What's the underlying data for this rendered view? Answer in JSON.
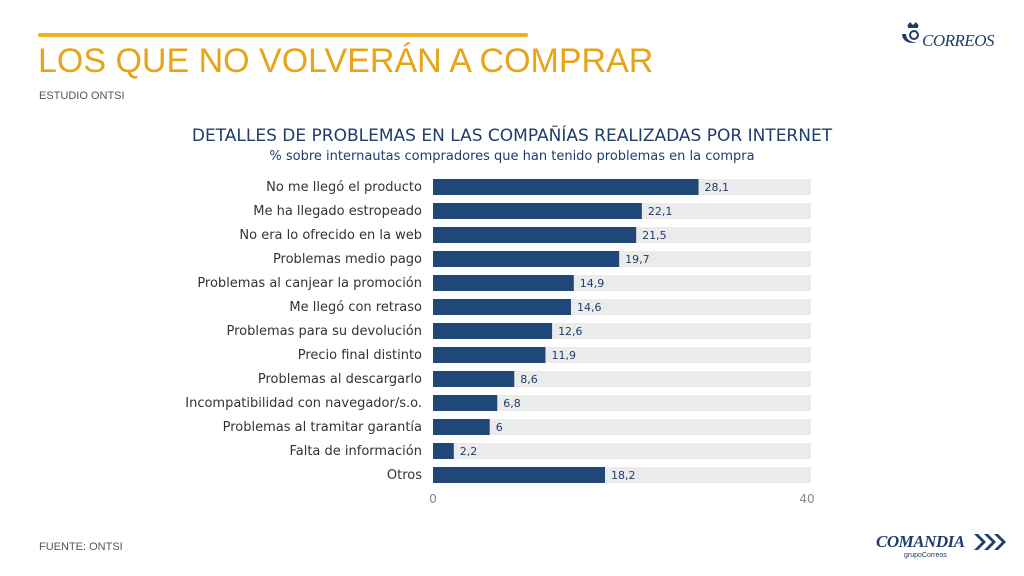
{
  "header": {
    "title": "LOS QUE NO VOLVERÁN A COMPRAR",
    "subtitle": "ESTUDIO ONTSI"
  },
  "footer": {
    "source": "FUENTE: ONTSI"
  },
  "logos": {
    "top": "CORREOS",
    "bottom": "COMANDIA",
    "bottom_sub": "grupoCorreos"
  },
  "colors": {
    "accent": "#e8a317",
    "bar": "#1f4878",
    "track": "#ebebeb",
    "navy": "#1f3d6b"
  },
  "chart_data": {
    "type": "bar",
    "orientation": "horizontal",
    "title": "DETALLES DE PROBLEMAS EN LAS COMPAÑÍAS REALIZADAS POR INTERNET",
    "subtitle": "% sobre internautas compradores que han tenido problemas en la compra",
    "categories": [
      "No me llegó el producto",
      "Me ha llegado estropeado",
      "No era lo ofrecido en la web",
      "Problemas medio pago",
      "Problemas al canjear la promoción",
      "Me llegó con retraso",
      "Problemas para su devolución",
      "Precio final distinto",
      "Problemas al descargarlo",
      "Incompatibilidad con navegador/s.o.",
      "Problemas al tramitar garantía",
      "Falta de información",
      "Otros"
    ],
    "values": [
      28.1,
      22.1,
      21.5,
      19.7,
      14.9,
      14.6,
      12.6,
      11.9,
      8.6,
      6.8,
      6,
      2.2,
      18.2
    ],
    "value_labels": [
      "28,1",
      "22,1",
      "21,5",
      "19,7",
      "14,9",
      "14,6",
      "12,6",
      "11,9",
      "8,6",
      "6,8",
      "6",
      "2,2",
      "18,2"
    ],
    "xlim": [
      0,
      40
    ],
    "x_ticks": [
      "0",
      "40"
    ],
    "grid": false,
    "legend": "none"
  }
}
